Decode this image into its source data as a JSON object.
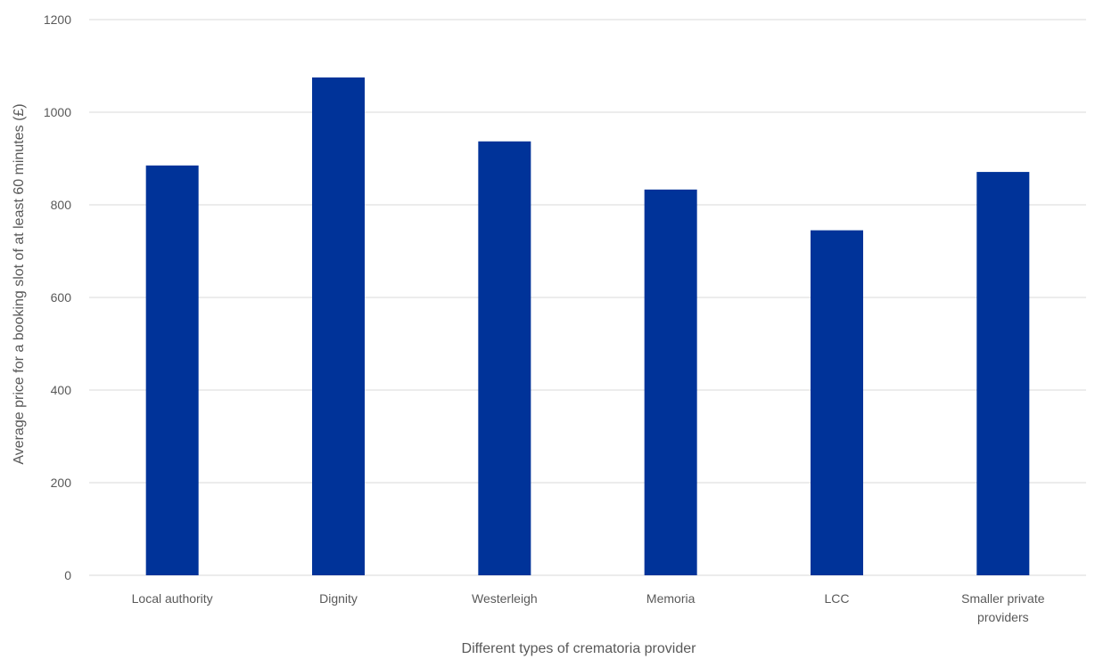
{
  "chart_data": {
    "type": "bar",
    "title": "",
    "xlabel": "Different types of crematoria provider",
    "ylabel": "Average price for a booking slot of at least 60 minutes (£)",
    "categories": [
      "Local authority",
      "Dignity",
      "Westerleigh",
      "Memoria",
      "LCC",
      "Smaller private providers"
    ],
    "category_lines": [
      [
        "Local authority"
      ],
      [
        "Dignity"
      ],
      [
        "Westerleigh"
      ],
      [
        "Memoria"
      ],
      [
        "LCC"
      ],
      [
        "Smaller private",
        "providers"
      ]
    ],
    "values": [
      885,
      1075,
      937,
      833,
      745,
      871
    ],
    "ylim": [
      0,
      1200
    ],
    "yticks": [
      "0",
      "200",
      "400",
      "600",
      "800",
      "1000",
      "1200"
    ],
    "grid": true,
    "legend": "none",
    "bar_color": "#003399"
  }
}
